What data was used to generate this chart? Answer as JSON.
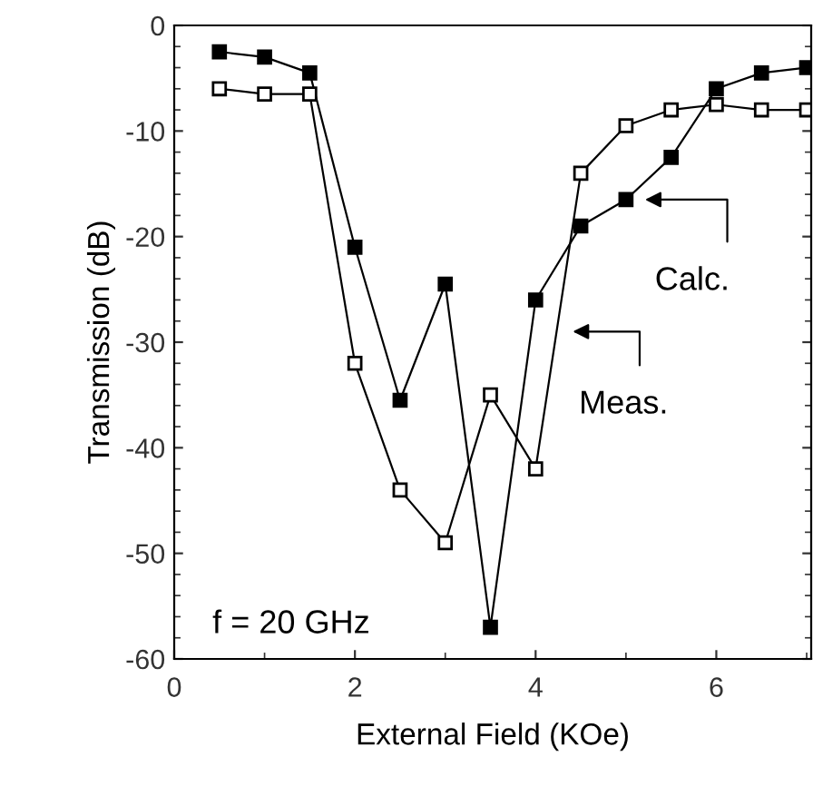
{
  "chart_data": {
    "type": "line",
    "xlabel": "External Field (KOe)",
    "ylabel": "Transmission (dB)",
    "x": [
      0.5,
      1,
      1.5,
      2,
      2.5,
      3,
      3.5,
      4,
      4.5,
      5,
      5.5,
      6,
      6.5,
      7
    ],
    "series": [
      {
        "color": "#000000",
        "marker": "square",
        "values": [
          -2.5,
          -3,
          -4.5,
          -21,
          -35.5,
          -24.5,
          -57,
          -26,
          -19,
          -16.5,
          -12.5,
          -6,
          -4.5,
          -4
        ]
      },
      {
        "color": "#000000",
        "marker": "square",
        "values": [
          -6,
          -6.5,
          -6.5,
          -32,
          -44,
          -49,
          -35,
          -42,
          -14,
          -9.5,
          -8,
          -7.5,
          -8,
          -8
        ]
      }
    ],
    "xlim": [
      0,
      7.05
    ],
    "ylim": [
      -60,
      0
    ],
    "xticks": [
      0,
      2,
      4,
      6
    ],
    "yticks": [
      -60,
      -50,
      -40,
      -30,
      -20,
      -10,
      0
    ],
    "grid": false,
    "legend": false,
    "line_style": "solid",
    "annotations": [
      {
        "text": "Calc.",
        "x": 5.1,
        "y": -16.5
      },
      {
        "text": "Meas.",
        "x": 4.3,
        "y": -29
      },
      "f = 20 GHz"
    ]
  }
}
